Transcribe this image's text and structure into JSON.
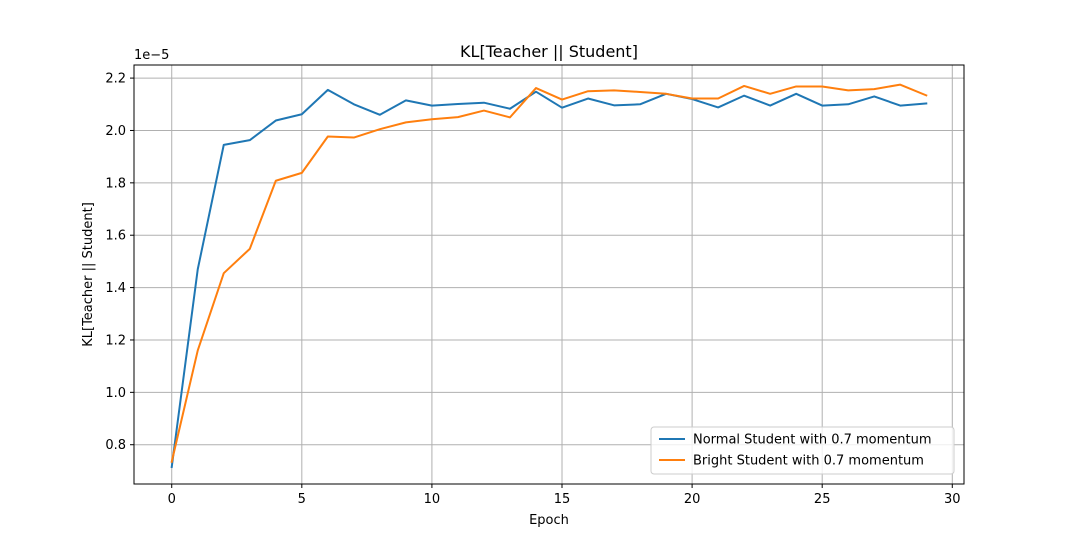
{
  "chart_data": {
    "type": "line",
    "title": "KL[Teacher || Student]",
    "xlabel": "Epoch",
    "ylabel": "KL[Teacher || Student]",
    "y_offset_label": "1e−5",
    "y_scale_factor": 1e-05,
    "xlim": [
      -1.45,
      30.45
    ],
    "ylim": [
      0.65,
      2.25
    ],
    "x_ticks": [
      0,
      5,
      10,
      15,
      20,
      25,
      30
    ],
    "x_tick_labels": [
      "0",
      "5",
      "10",
      "15",
      "20",
      "25",
      "30"
    ],
    "y_ticks": [
      0.8,
      1.0,
      1.2,
      1.4,
      1.6,
      1.8,
      2.0,
      2.2
    ],
    "y_tick_labels": [
      "0.8",
      "1.0",
      "1.2",
      "1.4",
      "1.6",
      "1.8",
      "2.0",
      "2.2"
    ],
    "grid": true,
    "legend_position": "lower-right",
    "x": [
      0,
      1,
      2,
      3,
      4,
      5,
      6,
      7,
      8,
      9,
      10,
      11,
      12,
      13,
      14,
      15,
      16,
      17,
      18,
      19,
      20,
      21,
      22,
      23,
      24,
      25,
      26,
      27,
      28,
      29
    ],
    "series": [
      {
        "name": "Normal Student with 0.7 momentum",
        "color": "#1f77b4",
        "values": [
          0.715,
          1.47,
          1.945,
          1.963,
          2.038,
          2.062,
          2.155,
          2.1,
          2.06,
          2.115,
          2.095,
          2.101,
          2.106,
          2.083,
          2.148,
          2.087,
          2.122,
          2.096,
          2.1,
          2.14,
          2.12,
          2.088,
          2.133,
          2.095,
          2.14,
          2.095,
          2.1,
          2.13,
          2.095,
          2.103
        ]
      },
      {
        "name": "Bright Student with 0.7 momentum",
        "color": "#ff7f0e",
        "values": [
          0.735,
          1.16,
          1.455,
          1.548,
          1.808,
          1.838,
          1.977,
          1.973,
          2.005,
          2.031,
          2.043,
          2.051,
          2.076,
          2.05,
          2.162,
          2.118,
          2.15,
          2.153,
          2.147,
          2.14,
          2.122,
          2.122,
          2.17,
          2.14,
          2.168,
          2.168,
          2.153,
          2.158,
          2.175,
          2.134
        ]
      }
    ]
  }
}
